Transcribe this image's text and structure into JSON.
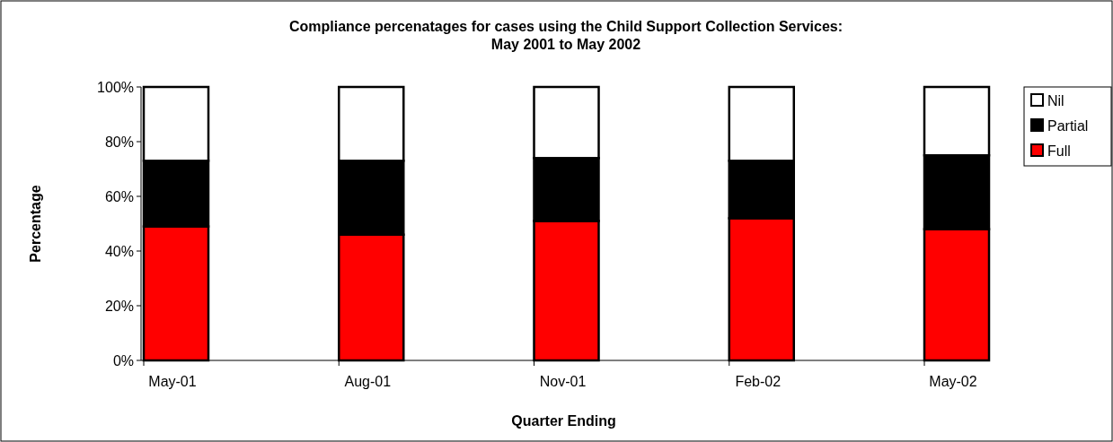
{
  "chart_data": {
    "type": "bar",
    "stacked": true,
    "title": "Compliance percenatages for cases using the Child Support Collection Services:\nMay 2001 to May 2002",
    "xlabel": "Quarter Ending",
    "ylabel": "Percentage",
    "categories": [
      "May-01",
      "Aug-01",
      "Nov-01",
      "Feb-02",
      "May-02"
    ],
    "series": [
      {
        "name": "Full",
        "color": "#ff0000",
        "values": [
          49,
          46,
          51,
          52,
          48
        ]
      },
      {
        "name": "Partial",
        "color": "#000000",
        "values": [
          24,
          27,
          23,
          21,
          27
        ]
      },
      {
        "name": "Nil",
        "color": "#ffffff",
        "values": [
          27,
          27,
          26,
          27,
          25
        ]
      }
    ],
    "ylim": [
      0,
      100
    ],
    "yticks": [
      {
        "value": 0,
        "label": "0%"
      },
      {
        "value": 20,
        "label": "20%"
      },
      {
        "value": 40,
        "label": "40%"
      },
      {
        "value": 60,
        "label": "60%"
      },
      {
        "value": 80,
        "label": "80%"
      },
      {
        "value": 100,
        "label": "100%"
      }
    ],
    "grid": false,
    "legend": "right"
  }
}
